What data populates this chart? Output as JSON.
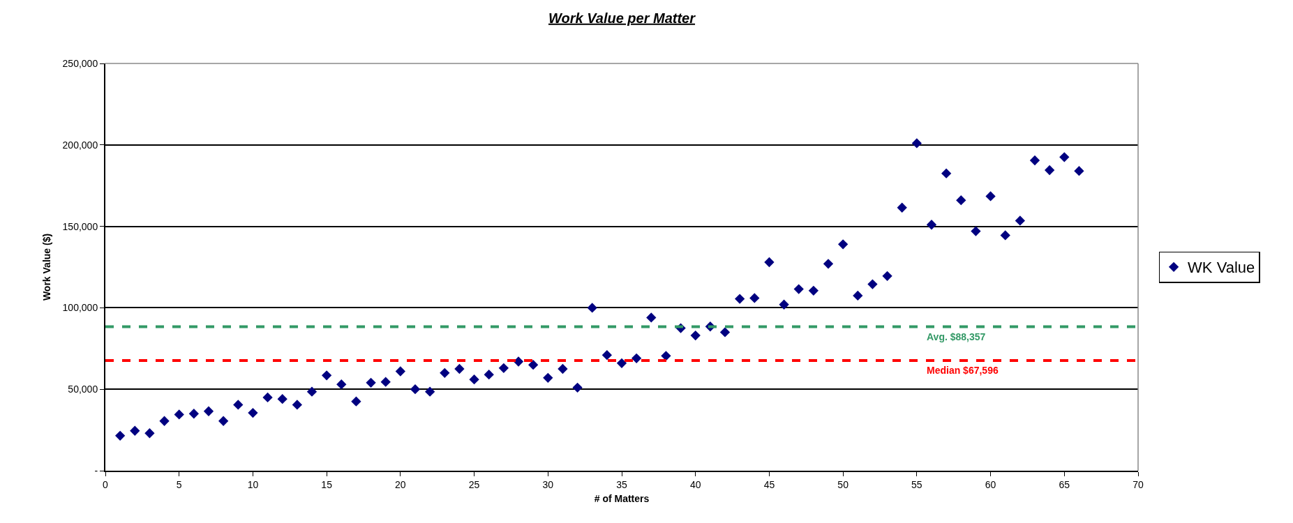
{
  "chart_data": {
    "type": "scatter",
    "title": "Work Value per Matter",
    "xlabel": "# of Matters",
    "ylabel": "Work Value ($)",
    "x": [
      1,
      2,
      3,
      4,
      5,
      6,
      7,
      8,
      9,
      10,
      11,
      12,
      13,
      14,
      15,
      16,
      17,
      18,
      19,
      20,
      21,
      22,
      23,
      24,
      25,
      26,
      27,
      28,
      29,
      30,
      31,
      32,
      33,
      34,
      35,
      36,
      37,
      38,
      39,
      40,
      41,
      42,
      43,
      44,
      45,
      46,
      47,
      48,
      49,
      50,
      51,
      52,
      53,
      54,
      55,
      56,
      57,
      58,
      59,
      60,
      61,
      62,
      63,
      64,
      65,
      66
    ],
    "series": [
      {
        "name": "WK Value",
        "color": "#000080",
        "values": [
          21500,
          24500,
          23000,
          30500,
          34500,
          35000,
          36500,
          30500,
          40500,
          35500,
          45000,
          44000,
          40500,
          48500,
          58500,
          53000,
          42500,
          54000,
          54500,
          61000,
          50000,
          48500,
          60000,
          62500,
          56000,
          59000,
          63000,
          67000,
          65000,
          57000,
          62500,
          51000,
          100000,
          71000,
          66000,
          69000,
          94000,
          70500,
          87500,
          83000,
          88500,
          85000,
          105500,
          106000,
          128000,
          102000,
          111500,
          110500,
          127000,
          139000,
          107500,
          114500,
          119500,
          161500,
          201000,
          151000,
          182500,
          166000,
          147000,
          168500,
          144500,
          153500,
          190500,
          184500,
          192500,
          184000
        ]
      }
    ],
    "xlim": [
      0,
      70
    ],
    "xticks": [
      0,
      5,
      10,
      15,
      20,
      25,
      30,
      35,
      40,
      45,
      50,
      55,
      60,
      65,
      70
    ],
    "ylim": [
      0,
      250000
    ],
    "yticks": [
      {
        "value": 0,
        "label": "-"
      },
      {
        "value": 50000,
        "label": "50,000"
      },
      {
        "value": 100000,
        "label": "100,000"
      },
      {
        "value": 150000,
        "label": "150,000"
      },
      {
        "value": 200000,
        "label": "200,000"
      },
      {
        "value": 250000,
        "label": "250,000"
      }
    ],
    "ref_lines": [
      {
        "axis": "y",
        "value": 88357,
        "label": "Avg. $88,357",
        "color": "#339966",
        "line_style": "dashed"
      },
      {
        "axis": "y",
        "value": 67596,
        "label": "Median $67,596",
        "color": "#ff0000",
        "line_style": "dashed"
      }
    ],
    "grid": "y",
    "legend": "right",
    "marker": "diamond"
  }
}
